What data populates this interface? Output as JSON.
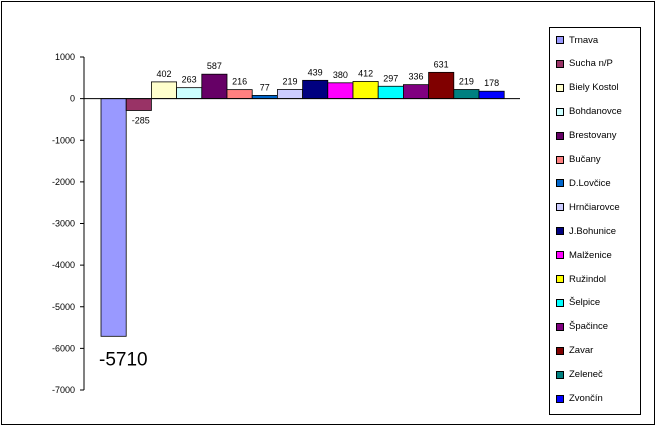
{
  "chart_data": {
    "type": "bar",
    "title": "",
    "xlabel": "",
    "ylabel": "",
    "ylim": [
      -7000,
      1000
    ],
    "yticks": [
      1000,
      0,
      -1000,
      -2000,
      -3000,
      -4000,
      -5000,
      -6000,
      -7000
    ],
    "legend_position": "right",
    "series": [
      {
        "name": "Trnava",
        "value": -5710,
        "color": "#9999ff",
        "label": "-5710"
      },
      {
        "name": "Sucha n/P",
        "value": -285,
        "color": "#993366",
        "label": "-285"
      },
      {
        "name": "Biely Kostol",
        "value": 402,
        "color": "#ffffcc",
        "label": "402"
      },
      {
        "name": "Bohdanovce",
        "value": 263,
        "color": "#ccffff",
        "label": "263"
      },
      {
        "name": "Brestovany",
        "value": 587,
        "color": "#660066",
        "label": "587"
      },
      {
        "name": "Bučany",
        "value": 216,
        "color": "#ff8080",
        "label": "216"
      },
      {
        "name": "D.Lovčice",
        "value": 77,
        "color": "#0066cc",
        "label": "77"
      },
      {
        "name": "Hrnčiarovce",
        "value": 219,
        "color": "#ccccff",
        "label": "219"
      },
      {
        "name": "J.Bohunice",
        "value": 439,
        "color": "#000080",
        "label": "439"
      },
      {
        "name": "Malženice",
        "value": 380,
        "color": "#ff00ff",
        "label": "380"
      },
      {
        "name": "Ružindol",
        "value": 412,
        "color": "#ffff00",
        "label": "412"
      },
      {
        "name": "Šelpice",
        "value": 297,
        "color": "#00ffff",
        "label": "297"
      },
      {
        "name": "Špačince",
        "value": 336,
        "color": "#800080",
        "label": "336"
      },
      {
        "name": "Zavar",
        "value": 631,
        "color": "#800000",
        "label": "631"
      },
      {
        "name": "Zeleneč",
        "value": 219,
        "color": "#008080",
        "label": "219"
      },
      {
        "name": "Zvončín",
        "value": 178,
        "color": "#0000ff",
        "label": "178"
      }
    ]
  }
}
